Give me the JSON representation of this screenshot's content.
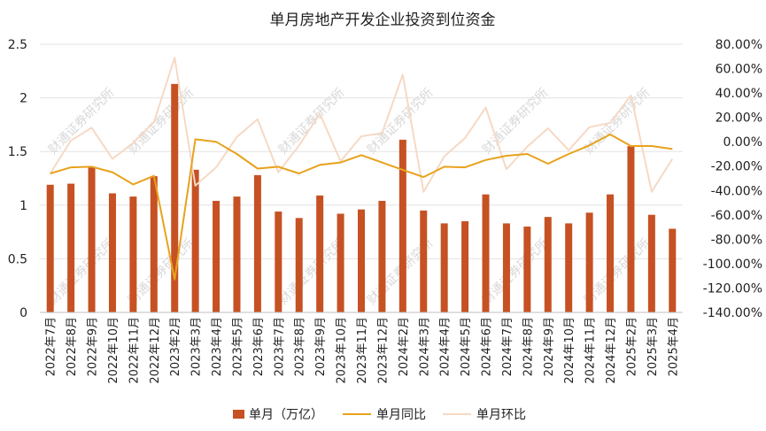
{
  "chart_data": {
    "type": "bar",
    "title": "单月房地产开发企业投资到位资金",
    "categories": [
      "2022年7月",
      "2022年8月",
      "2022年9月",
      "2022年10月",
      "2022年11月",
      "2022年12月",
      "2023年2月",
      "2023年3月",
      "2023年4月",
      "2023年5月",
      "2023年6月",
      "2023年7月",
      "2023年8月",
      "2023年9月",
      "2023年10月",
      "2023年11月",
      "2023年12月",
      "2024年2月",
      "2024年3月",
      "2024年4月",
      "2024年5月",
      "2024年6月",
      "2024年7月",
      "2024年8月",
      "2024年9月",
      "2024年10月",
      "2024年11月",
      "2024年12月",
      "2025年2月",
      "2025年3月",
      "2025年4月"
    ],
    "series": [
      {
        "name": "单月（万亿）",
        "type": "bar",
        "axis": "left",
        "values": [
          1.19,
          1.2,
          1.35,
          1.11,
          1.08,
          1.27,
          2.13,
          1.33,
          1.04,
          1.08,
          1.28,
          0.94,
          0.88,
          1.09,
          0.92,
          0.96,
          1.04,
          1.61,
          0.95,
          0.83,
          0.85,
          1.1,
          0.83,
          0.8,
          0.89,
          0.83,
          0.93,
          1.1,
          1.55,
          0.91,
          0.78
        ]
      },
      {
        "name": "单月同比",
        "type": "line",
        "axis": "right",
        "values": [
          -26,
          -21,
          -20.5,
          -25,
          -35,
          -28,
          -113,
          2,
          0,
          -10,
          -22,
          -20.5,
          -26,
          -19,
          -17,
          -11,
          -17,
          -23,
          -29,
          -20.5,
          -21,
          -15,
          -11.5,
          -10,
          -18,
          -10,
          -3,
          6,
          -3.5,
          -3.5,
          -6
        ]
      },
      {
        "name": "单月环比",
        "type": "line",
        "axis": "right",
        "values": [
          -26,
          1,
          11.5,
          -14,
          -1,
          16,
          69,
          -36,
          -21,
          4,
          18.5,
          -25,
          -3,
          23,
          -16,
          4.5,
          7,
          55,
          -41,
          -12,
          3,
          28,
          -22.5,
          -4,
          11,
          -7,
          12,
          15.5,
          38,
          -41,
          -14
        ]
      }
    ],
    "y_left": {
      "min": 0,
      "max": 2.5,
      "ticks": [
        "0",
        "0.5",
        "1",
        "1.5",
        "2",
        "2.5"
      ]
    },
    "y_right": {
      "min": -140,
      "max": 80,
      "ticks": [
        "-140.00%",
        "-120.00%",
        "-100.00%",
        "-80.00%",
        "-60.00%",
        "-40.00%",
        "-20.00%",
        "0.00%",
        "20.00%",
        "40.00%",
        "60.00%",
        "80.00%"
      ]
    },
    "colors": {
      "bar": "#C65123",
      "yoy": "#E8A21C",
      "mom": "#F6D9C4",
      "grid": "#E3E3E3"
    },
    "grid": true,
    "legend_position": "bottom",
    "watermark": "财通证券研究所"
  }
}
